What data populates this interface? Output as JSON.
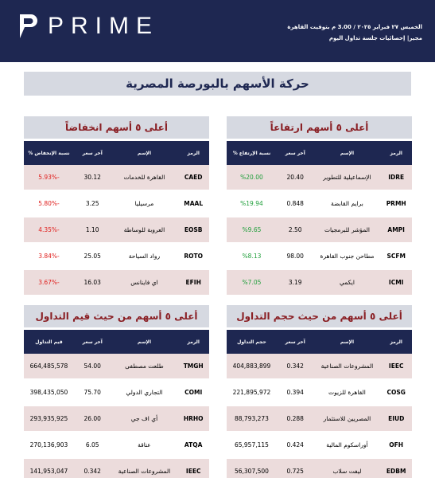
{
  "header": {
    "logo": "PRIME",
    "date": "الخميس ٢٧ فبراير ٢٠٢٥ / 3.00 م بتوقيت القاهرة",
    "subtitle": "مجير| إحصائيات جلسة تداول اليوم"
  },
  "title": "حركة الأسهم بالبورصة المصرية",
  "sections": [
    {
      "title": "أعلى ٥ أسهم ارتفاعاً",
      "value_color": "#1f9e3a",
      "columns": [
        "الرمز",
        "الإسم",
        "آخر سعر",
        "نسبة الإرتفاع %"
      ],
      "rows": [
        [
          "IDRE",
          "الإسماعيلية للتطوير",
          "20.40",
          "%20.00"
        ],
        [
          "PRMH",
          "برايم القابضة",
          "0.848",
          "%19.94"
        ],
        [
          "AMPI",
          "المؤشر للبرمجيات",
          "2.50",
          "%9.65"
        ],
        [
          "SCFM",
          "مطاحن جنوب القاهرة",
          "98.00",
          "%8.13"
        ],
        [
          "ICMI",
          "ايكمي",
          "3.19",
          "%7.05"
        ]
      ]
    },
    {
      "title": "أعلى ٥ أسهم انخفاضاً",
      "value_color": "#e0201e",
      "columns": [
        "الرمز",
        "الإسم",
        "آخر سعر",
        "نسبة الإنخفاض %"
      ],
      "rows": [
        [
          "CAED",
          "القاهرة للخدمات",
          "30.12",
          "-5.93%"
        ],
        [
          "MAAL",
          "مرسيليا",
          "3.25",
          "-5.80%"
        ],
        [
          "EOSB",
          "العروبة للوساطة",
          "1.10",
          "-4.35%"
        ],
        [
          "ROTO",
          "رواد السياحة",
          "25.05",
          "-3.84%"
        ],
        [
          "EFIH",
          "اي فاينانس",
          "16.03",
          "-3.67%"
        ]
      ]
    },
    {
      "title": "أعلى ٥ أسهم من حيث حجم التداول",
      "columns": [
        "الرمز",
        "الإسم",
        "آخر سعر",
        "حجم التداول"
      ],
      "rows": [
        [
          "IEEC",
          "المشروعات الصناعية",
          "0.342",
          "404,883,899"
        ],
        [
          "COSG",
          "القاهرة للزيوت",
          "0.394",
          "221,895,972"
        ],
        [
          "EIUD",
          "المصريين للاستثمار",
          "0.288",
          "88,793,273"
        ],
        [
          "OFH",
          "أوراسكوم المالية",
          "0.424",
          "65,957,115"
        ],
        [
          "EDBM",
          "ليفت سلاب",
          "0.725",
          "56,307,500"
        ]
      ]
    },
    {
      "title": "أعلى ٥ أسهم من حيث قيم التداول",
      "columns": [
        "الرمز",
        "الإسم",
        "آخر سعر",
        "قيم التداول"
      ],
      "rows": [
        [
          "TMGH",
          "طلعت مصطفى",
          "54.00",
          "664,485,578"
        ],
        [
          "COMI",
          "التجاري الدولي",
          "75.70",
          "398,435,050"
        ],
        [
          "HRHO",
          "أي اف جي",
          "26.00",
          "293,935,925"
        ],
        [
          "ATQA",
          "عتاقة",
          "6.05",
          "270,136,903"
        ],
        [
          "IEEC",
          "المشروعات الصناعية",
          "0.342",
          "141,953,047"
        ]
      ]
    }
  ]
}
